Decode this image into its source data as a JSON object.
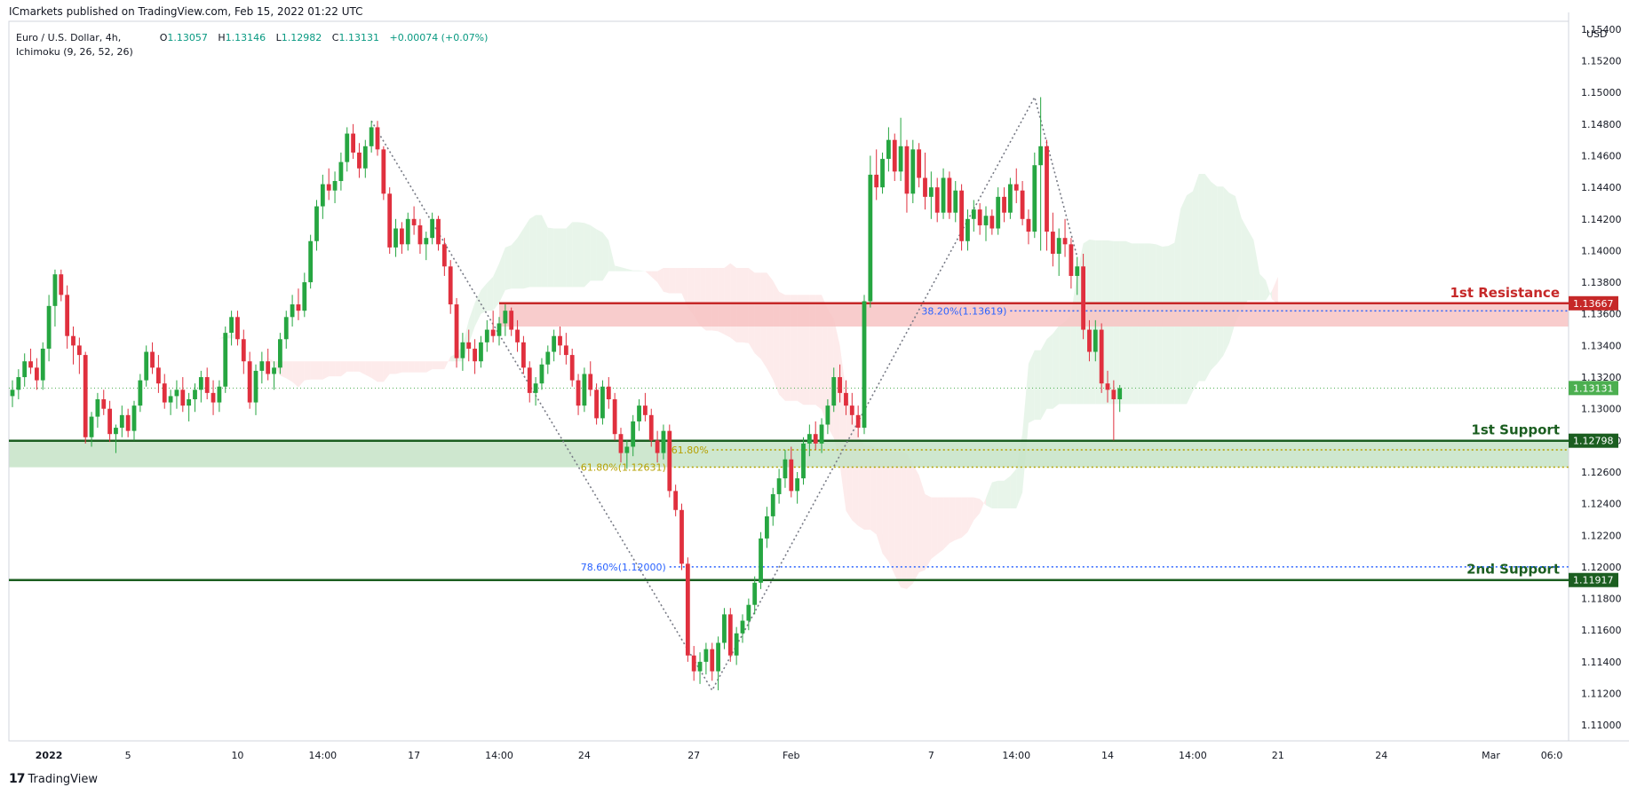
{
  "header": {
    "publisher_text": "ICmarkets published on TradingView.com, Feb 15, 2022 01:22 UTC",
    "symbol": "Euro / U.S. Dollar, 4h,",
    "indicator": "Ichimoku (9, 26, 52, 26)",
    "ohlc": {
      "o_label": "O",
      "o": "1.13057",
      "h_label": "H",
      "h": "1.13146",
      "l_label": "L",
      "l": "1.12982",
      "c_label": "C",
      "c": "1.13131",
      "change": "+0.00074 (+0.07%)"
    }
  },
  "footer": {
    "brand": "TradingView",
    "brand_logo": "17"
  },
  "colors": {
    "up": "#26a641",
    "down": "#e0303e",
    "resistance": "#c62828",
    "support": "#1b5e20",
    "fib_blue": "#2962ff",
    "fib_gold": "#b5a000",
    "cloud_green": "#d6ecd8",
    "cloud_red": "#fbdada",
    "last_price": "#4caf50"
  },
  "chart_data": {
    "type": "candlestick",
    "currency": "USD",
    "ylim": [
      1.109,
      1.1545
    ],
    "y_ticks": [
      "1.15400",
      "1.15200",
      "1.15000",
      "1.14800",
      "1.14600",
      "1.14400",
      "1.14200",
      "1.14000",
      "1.13800",
      "1.13600",
      "1.13400",
      "1.13200",
      "1.13000",
      "1.12800",
      "1.12600",
      "1.12400",
      "1.12200",
      "1.12000",
      "1.11800",
      "1.11600",
      "1.11400",
      "1.11200",
      "1.11000"
    ],
    "x_ticks": [
      {
        "label": "2022",
        "bar": 6
      },
      {
        "label": "5",
        "bar": 19
      },
      {
        "label": "10",
        "bar": 37
      },
      {
        "label": "14:00",
        "bar": 51
      },
      {
        "label": "17",
        "bar": 66
      },
      {
        "label": "14:00",
        "bar": 80
      },
      {
        "label": "24",
        "bar": 94
      },
      {
        "label": "27",
        "bar": 112
      },
      {
        "label": "Feb",
        "bar": 128
      },
      {
        "label": "7",
        "bar": 151
      },
      {
        "label": "14:00",
        "bar": 165
      },
      {
        "label": "14",
        "bar": 180
      },
      {
        "label": "14:00",
        "bar": 194
      },
      {
        "label": "21",
        "bar": 208
      },
      {
        "label": "24",
        "bar": 225
      },
      {
        "label": "Mar",
        "bar": 243
      },
      {
        "label": "06:0",
        "bar": 253
      }
    ],
    "levels": [
      {
        "name": "1st Resistance",
        "price": 1.13667,
        "label": "1.13667",
        "kind": "resistance",
        "from_bar": 80,
        "zone_low": 1.1352
      },
      {
        "name": "1st Support",
        "price": 1.12798,
        "label": "1.12798",
        "kind": "support",
        "from_bar": 0,
        "zone_low": 1.1263
      },
      {
        "name": "2nd Support",
        "price": 1.11917,
        "label": "1.11917",
        "kind": "support",
        "from_bar": 0
      }
    ],
    "fib_lines": [
      {
        "label": "38.20%(1.13619)",
        "price": 1.13619,
        "color": "blue",
        "from_bar": 164
      },
      {
        "label": "78.60%(1.12000)",
        "price": 1.12,
        "color": "blue",
        "from_bar": 108
      },
      {
        "label": "61.80%",
        "price": 1.1274,
        "color": "gold",
        "from_bar": 115
      },
      {
        "label": "61.80%(1.12631)",
        "price": 1.12631,
        "color": "gold",
        "from_bar": 108
      }
    ],
    "last_price": {
      "price": 1.13131,
      "label": "1.13131"
    },
    "zigzag": [
      {
        "bar": 59,
        "price": 1.1482
      },
      {
        "bar": 115,
        "price": 1.1122
      },
      {
        "bar": 168,
        "price": 1.1497
      },
      {
        "bar": 175,
        "price": 1.1396
      }
    ],
    "candles": [
      [
        1.1308,
        1.1318,
        1.1301,
        1.1312
      ],
      [
        1.1312,
        1.1325,
        1.1306,
        1.132
      ],
      [
        1.132,
        1.1335,
        1.1314,
        1.133
      ],
      [
        1.133,
        1.1338,
        1.1322,
        1.1326
      ],
      [
        1.1326,
        1.1332,
        1.1312,
        1.1318
      ],
      [
        1.1318,
        1.1342,
        1.1312,
        1.1338
      ],
      [
        1.1338,
        1.1372,
        1.133,
        1.1365
      ],
      [
        1.1365,
        1.1388,
        1.1352,
        1.1385
      ],
      [
        1.1385,
        1.1388,
        1.1368,
        1.1372
      ],
      [
        1.1372,
        1.1378,
        1.1338,
        1.1346
      ],
      [
        1.1346,
        1.1352,
        1.1328,
        1.134
      ],
      [
        1.134,
        1.1345,
        1.1322,
        1.1334
      ],
      [
        1.1334,
        1.1336,
        1.1278,
        1.1282
      ],
      [
        1.1282,
        1.1298,
        1.1276,
        1.1295
      ],
      [
        1.1295,
        1.131,
        1.1288,
        1.1306
      ],
      [
        1.1306,
        1.1312,
        1.1296,
        1.13
      ],
      [
        1.13,
        1.1305,
        1.1279,
        1.1284
      ],
      [
        1.1284,
        1.129,
        1.1272,
        1.1288
      ],
      [
        1.1288,
        1.1302,
        1.1282,
        1.1296
      ],
      [
        1.1296,
        1.13,
        1.1282,
        1.1286
      ],
      [
        1.1286,
        1.1305,
        1.128,
        1.1302
      ],
      [
        1.1302,
        1.1322,
        1.1298,
        1.1318
      ],
      [
        1.1318,
        1.134,
        1.1314,
        1.1336
      ],
      [
        1.1336,
        1.1342,
        1.1322,
        1.1326
      ],
      [
        1.1326,
        1.1334,
        1.131,
        1.1316
      ],
      [
        1.1316,
        1.1322,
        1.13,
        1.1304
      ],
      [
        1.1304,
        1.1312,
        1.1296,
        1.1308
      ],
      [
        1.1308,
        1.1318,
        1.13,
        1.1312
      ],
      [
        1.1312,
        1.132,
        1.1298,
        1.1302
      ],
      [
        1.1302,
        1.131,
        1.1292,
        1.1306
      ],
      [
        1.1306,
        1.1316,
        1.1298,
        1.1312
      ],
      [
        1.1312,
        1.1324,
        1.1304,
        1.132
      ],
      [
        1.132,
        1.1326,
        1.1306,
        1.131
      ],
      [
        1.131,
        1.1318,
        1.1296,
        1.1304
      ],
      [
        1.1304,
        1.1318,
        1.1298,
        1.1314
      ],
      [
        1.1314,
        1.1352,
        1.131,
        1.1348
      ],
      [
        1.1348,
        1.1362,
        1.134,
        1.1358
      ],
      [
        1.1358,
        1.1362,
        1.134,
        1.1344
      ],
      [
        1.1344,
        1.135,
        1.1322,
        1.133
      ],
      [
        1.133,
        1.1336,
        1.13,
        1.1304
      ],
      [
        1.1304,
        1.1328,
        1.1296,
        1.1324
      ],
      [
        1.1324,
        1.1336,
        1.1316,
        1.133
      ],
      [
        1.133,
        1.1338,
        1.1318,
        1.1322
      ],
      [
        1.1322,
        1.133,
        1.1312,
        1.1326
      ],
      [
        1.1326,
        1.1348,
        1.1322,
        1.1344
      ],
      [
        1.1344,
        1.1362,
        1.1338,
        1.1358
      ],
      [
        1.1358,
        1.1372,
        1.1352,
        1.1366
      ],
      [
        1.1366,
        1.1376,
        1.1356,
        1.1362
      ],
      [
        1.1362,
        1.1386,
        1.1358,
        1.138
      ],
      [
        1.138,
        1.141,
        1.1376,
        1.1406
      ],
      [
        1.1406,
        1.1432,
        1.14,
        1.1428
      ],
      [
        1.1428,
        1.1448,
        1.142,
        1.1442
      ],
      [
        1.1442,
        1.1452,
        1.1432,
        1.1438
      ],
      [
        1.1438,
        1.145,
        1.143,
        1.1444
      ],
      [
        1.1444,
        1.1462,
        1.1438,
        1.1456
      ],
      [
        1.1456,
        1.1478,
        1.145,
        1.1474
      ],
      [
        1.1474,
        1.148,
        1.1458,
        1.1462
      ],
      [
        1.1462,
        1.1468,
        1.1446,
        1.1452
      ],
      [
        1.1452,
        1.147,
        1.1446,
        1.1466
      ],
      [
        1.1466,
        1.1482,
        1.1462,
        1.1478
      ],
      [
        1.1478,
        1.1482,
        1.146,
        1.1464
      ],
      [
        1.1464,
        1.1466,
        1.1432,
        1.1436
      ],
      [
        1.1436,
        1.144,
        1.1398,
        1.1402
      ],
      [
        1.1402,
        1.142,
        1.1396,
        1.1414
      ],
      [
        1.1414,
        1.1418,
        1.1398,
        1.1404
      ],
      [
        1.1404,
        1.1424,
        1.14,
        1.142
      ],
      [
        1.142,
        1.1428,
        1.141,
        1.1416
      ],
      [
        1.1416,
        1.142,
        1.1398,
        1.1404
      ],
      [
        1.1404,
        1.1412,
        1.1394,
        1.1408
      ],
      [
        1.1408,
        1.1424,
        1.1404,
        1.142
      ],
      [
        1.142,
        1.1422,
        1.14,
        1.1404
      ],
      [
        1.1404,
        1.1408,
        1.1384,
        1.139
      ],
      [
        1.139,
        1.1394,
        1.136,
        1.1366
      ],
      [
        1.1366,
        1.137,
        1.1326,
        1.1332
      ],
      [
        1.1332,
        1.1348,
        1.1324,
        1.1342
      ],
      [
        1.1342,
        1.135,
        1.133,
        1.1338
      ],
      [
        1.1338,
        1.1344,
        1.1322,
        1.133
      ],
      [
        1.133,
        1.1346,
        1.1326,
        1.1342
      ],
      [
        1.1342,
        1.1356,
        1.1336,
        1.135
      ],
      [
        1.135,
        1.1362,
        1.1342,
        1.1346
      ],
      [
        1.1346,
        1.1358,
        1.134,
        1.1354
      ],
      [
        1.1354,
        1.1366,
        1.1346,
        1.1362
      ],
      [
        1.1362,
        1.1364,
        1.1346,
        1.135
      ],
      [
        1.135,
        1.1356,
        1.1336,
        1.1342
      ],
      [
        1.1342,
        1.1346,
        1.1322,
        1.1326
      ],
      [
        1.1326,
        1.133,
        1.1304,
        1.131
      ],
      [
        1.131,
        1.132,
        1.1302,
        1.1316
      ],
      [
        1.1316,
        1.1332,
        1.1312,
        1.1328
      ],
      [
        1.1328,
        1.134,
        1.1322,
        1.1336
      ],
      [
        1.1336,
        1.135,
        1.133,
        1.1346
      ],
      [
        1.1346,
        1.1352,
        1.1334,
        1.134
      ],
      [
        1.134,
        1.1348,
        1.1328,
        1.1334
      ],
      [
        1.1334,
        1.1338,
        1.1314,
        1.1318
      ],
      [
        1.1318,
        1.1322,
        1.1296,
        1.1302
      ],
      [
        1.1302,
        1.1326,
        1.1298,
        1.1322
      ],
      [
        1.1322,
        1.133,
        1.1308,
        1.1312
      ],
      [
        1.1312,
        1.1316,
        1.129,
        1.1294
      ],
      [
        1.1294,
        1.1318,
        1.129,
        1.1314
      ],
      [
        1.1314,
        1.132,
        1.13,
        1.1306
      ],
      [
        1.1306,
        1.131,
        1.128,
        1.1284
      ],
      [
        1.1284,
        1.1288,
        1.1266,
        1.1272
      ],
      [
        1.1272,
        1.128,
        1.1262,
        1.1276
      ],
      [
        1.1276,
        1.1296,
        1.127,
        1.1292
      ],
      [
        1.1292,
        1.1306,
        1.1286,
        1.1302
      ],
      [
        1.1302,
        1.131,
        1.1292,
        1.1296
      ],
      [
        1.1296,
        1.13,
        1.1276,
        1.128
      ],
      [
        1.128,
        1.1286,
        1.1266,
        1.1272
      ],
      [
        1.1272,
        1.129,
        1.1268,
        1.1286
      ],
      [
        1.1286,
        1.129,
        1.1244,
        1.1248
      ],
      [
        1.1248,
        1.1252,
        1.1232,
        1.1236
      ],
      [
        1.1236,
        1.124,
        1.1198,
        1.1202
      ],
      [
        1.1202,
        1.1206,
        1.114,
        1.1144
      ],
      [
        1.1144,
        1.115,
        1.1128,
        1.1134
      ],
      [
        1.1134,
        1.1146,
        1.1126,
        1.114
      ],
      [
        1.114,
        1.1152,
        1.1132,
        1.1148
      ],
      [
        1.1148,
        1.1152,
        1.1128,
        1.1134
      ],
      [
        1.1134,
        1.1156,
        1.1122,
        1.1152
      ],
      [
        1.1152,
        1.1174,
        1.1148,
        1.117
      ],
      [
        1.117,
        1.1174,
        1.114,
        1.1144
      ],
      [
        1.1144,
        1.1162,
        1.1138,
        1.1158
      ],
      [
        1.1158,
        1.117,
        1.1152,
        1.1166
      ],
      [
        1.1166,
        1.118,
        1.116,
        1.1176
      ],
      [
        1.1176,
        1.1194,
        1.117,
        1.119
      ],
      [
        1.119,
        1.1222,
        1.1186,
        1.1218
      ],
      [
        1.1218,
        1.1238,
        1.1212,
        1.1232
      ],
      [
        1.1232,
        1.125,
        1.1226,
        1.1246
      ],
      [
        1.1246,
        1.1262,
        1.124,
        1.1256
      ],
      [
        1.1256,
        1.1274,
        1.125,
        1.1268
      ],
      [
        1.1268,
        1.1276,
        1.1244,
        1.1248
      ],
      [
        1.1248,
        1.126,
        1.124,
        1.1256
      ],
      [
        1.1256,
        1.1282,
        1.1252,
        1.1278
      ],
      [
        1.1278,
        1.129,
        1.127,
        1.1284
      ],
      [
        1.1284,
        1.1292,
        1.1274,
        1.1278
      ],
      [
        1.1278,
        1.1294,
        1.1272,
        1.129
      ],
      [
        1.129,
        1.1306,
        1.1284,
        1.1302
      ],
      [
        1.1302,
        1.1326,
        1.1298,
        1.132
      ],
      [
        1.132,
        1.1328,
        1.1304,
        1.131
      ],
      [
        1.131,
        1.1318,
        1.1296,
        1.1302
      ],
      [
        1.1302,
        1.131,
        1.129,
        1.1296
      ],
      [
        1.1296,
        1.1302,
        1.1282,
        1.1288
      ],
      [
        1.1288,
        1.1372,
        1.1284,
        1.1368
      ],
      [
        1.1368,
        1.146,
        1.1364,
        1.1448
      ],
      [
        1.1448,
        1.1464,
        1.1432,
        1.144
      ],
      [
        1.144,
        1.1462,
        1.1436,
        1.1458
      ],
      [
        1.1458,
        1.1478,
        1.145,
        1.147
      ],
      [
        1.147,
        1.1474,
        1.1444,
        1.145
      ],
      [
        1.145,
        1.1484,
        1.1444,
        1.1466
      ],
      [
        1.1466,
        1.147,
        1.1424,
        1.1436
      ],
      [
        1.1436,
        1.147,
        1.143,
        1.1464
      ],
      [
        1.1464,
        1.1468,
        1.144,
        1.1446
      ],
      [
        1.1446,
        1.1462,
        1.1426,
        1.1434
      ],
      [
        1.1434,
        1.145,
        1.142,
        1.144
      ],
      [
        1.144,
        1.1446,
        1.1418,
        1.1424
      ],
      [
        1.1424,
        1.1452,
        1.142,
        1.1446
      ],
      [
        1.1446,
        1.145,
        1.142,
        1.1424
      ],
      [
        1.1424,
        1.1444,
        1.1418,
        1.1438
      ],
      [
        1.1438,
        1.1442,
        1.14,
        1.1406
      ],
      [
        1.1406,
        1.1426,
        1.14,
        1.142
      ],
      [
        1.142,
        1.1432,
        1.1412,
        1.1426
      ],
      [
        1.1426,
        1.143,
        1.141,
        1.1416
      ],
      [
        1.1416,
        1.1428,
        1.1406,
        1.1422
      ],
      [
        1.1422,
        1.1426,
        1.141,
        1.1414
      ],
      [
        1.1414,
        1.144,
        1.141,
        1.1434
      ],
      [
        1.1434,
        1.144,
        1.1418,
        1.1424
      ],
      [
        1.1424,
        1.1446,
        1.142,
        1.1442
      ],
      [
        1.1442,
        1.1452,
        1.143,
        1.1438
      ],
      [
        1.1438,
        1.1444,
        1.1416,
        1.142
      ],
      [
        1.142,
        1.1426,
        1.1404,
        1.1412
      ],
      [
        1.1412,
        1.1462,
        1.1408,
        1.1454
      ],
      [
        1.1454,
        1.1497,
        1.14,
        1.1466
      ],
      [
        1.1466,
        1.147,
        1.14,
        1.1412
      ],
      [
        1.1412,
        1.1424,
        1.139,
        1.1398
      ],
      [
        1.1398,
        1.1414,
        1.1384,
        1.1408
      ],
      [
        1.1408,
        1.142,
        1.1396,
        1.1404
      ],
      [
        1.1404,
        1.1408,
        1.1376,
        1.1384
      ],
      [
        1.1384,
        1.1396,
        1.1372,
        1.139
      ],
      [
        1.139,
        1.1398,
        1.1344,
        1.135
      ],
      [
        1.135,
        1.1356,
        1.133,
        1.1336
      ],
      [
        1.1336,
        1.1356,
        1.133,
        1.135
      ],
      [
        1.135,
        1.1354,
        1.131,
        1.1316
      ],
      [
        1.1316,
        1.1324,
        1.1304,
        1.1312
      ],
      [
        1.1312,
        1.1318,
        1.128,
        1.1306
      ],
      [
        1.1306,
        1.1315,
        1.1298,
        1.1313
      ]
    ]
  }
}
